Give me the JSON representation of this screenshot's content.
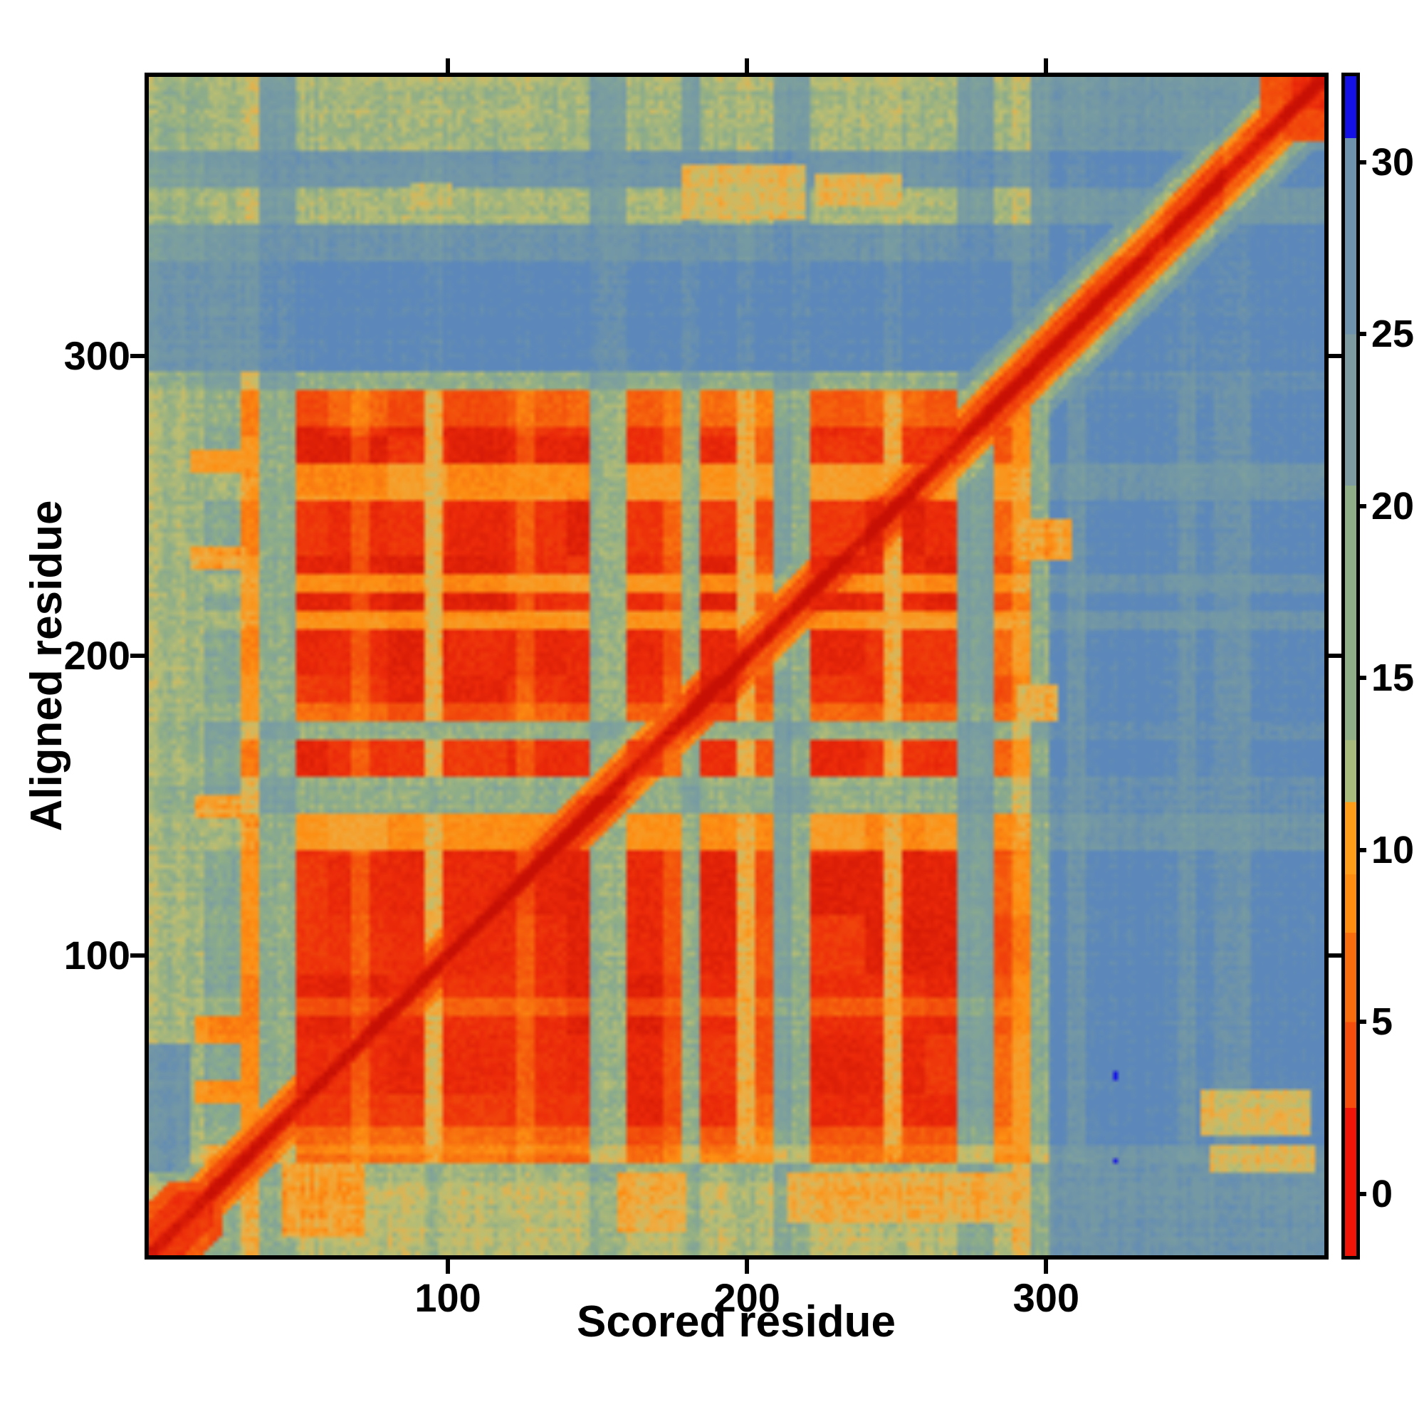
{
  "figure": {
    "background": "#ffffff"
  },
  "chart_data": {
    "type": "heatmap",
    "title": "",
    "xlabel": "Scored residue",
    "ylabel": "Aligned residue",
    "n_residues": 393,
    "x_range": [
      1,
      393
    ],
    "y_range": [
      1,
      393
    ],
    "grid": false,
    "x_ticks": [
      {
        "value": 100,
        "label": "100"
      },
      {
        "value": 200,
        "label": "200"
      },
      {
        "value": 300,
        "label": "300"
      }
    ],
    "y_ticks": [
      {
        "value": 100,
        "label": "100"
      },
      {
        "value": 200,
        "label": "200"
      },
      {
        "value": 300,
        "label": "300"
      }
    ],
    "colorbar": {
      "vmin": -1.8,
      "vmax": 32.5,
      "ticks": [
        {
          "value": 0,
          "label": "0"
        },
        {
          "value": 5,
          "label": "5"
        },
        {
          "value": 10,
          "label": "10"
        },
        {
          "value": 15,
          "label": "15"
        },
        {
          "value": 20,
          "label": "20"
        },
        {
          "value": 25,
          "label": "25"
        },
        {
          "value": 30,
          "label": "30"
        }
      ],
      "stops": [
        [
          -1.8,
          2.5,
          "#f01408"
        ],
        [
          2.5,
          5.0,
          "#f54d0b"
        ],
        [
          5.0,
          7.6,
          "#f96c0d"
        ],
        [
          7.6,
          9.3,
          "#fd8c10"
        ],
        [
          9.3,
          11.4,
          "#ff9d18"
        ],
        [
          11.4,
          13.2,
          "#a8ba7c"
        ],
        [
          13.2,
          20.6,
          "#8fae87"
        ],
        [
          20.6,
          25.0,
          "#7d9aa0"
        ],
        [
          25.0,
          30.7,
          "#6e91ac"
        ],
        [
          30.7,
          32.5,
          "#1411e6"
        ]
      ]
    },
    "palette": [
      "#c81004",
      "#ec2a0a",
      "#f4560c",
      "#fd8f13",
      "#eeae44",
      "#bcbf72",
      "#8fae87",
      "#7da09e",
      "#7095a8",
      "#5b87bb",
      "#1411e6"
    ],
    "matrix": {
      "bins": 64,
      "col_classes": "kkkddoggRRRrRRRyRRRRrRRRggRRrgRRyrGgRRRRyRRRGGrogbBbbbbbBbBBbbbb",
      "row_classes": "kkkkdorRRRRRRrRRRRRRRRyyggRRgrRRRRyRyRRRRyyRRrrgbbbbbbBBttBBtttt",
      "combine": {
        "k": {
          "k": 5.5,
          "d": 6,
          "o": 4,
          "g": 6,
          "G": 6.5,
          "R": 5,
          "r": 5,
          "y": 5.5,
          "b": 8,
          "B": 8
        },
        "d": {
          "k": 6,
          "d": 6,
          "o": 4,
          "g": 6.5,
          "G": 7,
          "R": 5.5,
          "r": 5.5,
          "y": 6,
          "b": 8,
          "B": 8
        },
        "o": {
          "k": 5,
          "d": 4,
          "o": 3,
          "g": 5,
          "G": 5,
          "R": 2.5,
          "r": 3,
          "y": 3.5,
          "b": 8,
          "B": 7.5
        },
        "r": {
          "k": 5.5,
          "d": 6,
          "o": 3,
          "g": 6,
          "G": 6.5,
          "R": 2,
          "r": 2.5,
          "y": 4,
          "b": 9,
          "B": 8
        },
        "R": {
          "k": 5.5,
          "d": 6.5,
          "o": 3,
          "g": 6,
          "G": 7,
          "R": 1,
          "r": 2,
          "y": 4,
          "b": 9,
          "B": 8
        },
        "y": {
          "k": 5.5,
          "d": 5.5,
          "o": 3.5,
          "g": 6,
          "G": 7,
          "R": 3.2,
          "r": 3.2,
          "y": 4,
          "b": 8,
          "B": 7.5
        },
        "g": {
          "k": 6,
          "d": 7,
          "o": 4.5,
          "g": 7,
          "G": 7.5,
          "R": 6,
          "r": 6,
          "y": 6,
          "b": 8.5,
          "B": 8
        },
        "b": {
          "k": 8,
          "d": 8,
          "o": 8,
          "g": 8.5,
          "G": 9,
          "R": 9,
          "r": 9,
          "y": 8.5,
          "b": 9,
          "B": 8.5
        },
        "B": {
          "k": 7,
          "d": 7.5,
          "o": 7.5,
          "g": 8,
          "G": 8.5,
          "R": 8,
          "r": 8,
          "y": 7.5,
          "b": 9,
          "B": 8.5
        },
        "t": {
          "k": 5.8,
          "d": 5.5,
          "o": 5,
          "g": 7.3,
          "G": 7.3,
          "R": 5.5,
          "r": 5.5,
          "y": 5.2,
          "b": 7.8,
          "B": 7.5
        }
      },
      "overrides": [
        [
          14,
          33,
          261,
          269,
          3
        ],
        [
          14,
          33,
          228,
          236,
          3.5
        ],
        [
          16,
          31,
          146,
          154,
          3.5
        ],
        [
          15,
          30,
          71,
          80,
          3
        ],
        [
          16,
          30,
          51,
          59,
          3
        ],
        [
          0,
          14,
          28,
          70,
          8
        ],
        [
          44,
          72,
          6,
          30,
          3.5
        ],
        [
          156,
          180,
          8,
          28,
          4
        ],
        [
          214,
          288,
          10,
          28,
          4
        ],
        [
          352,
          388,
          40,
          56,
          4.5
        ],
        [
          355,
          390,
          28,
          37,
          4.5
        ],
        [
          178,
          220,
          346,
          364,
          4.5
        ],
        [
          222,
          252,
          350,
          361,
          4.5
        ],
        [
          88,
          102,
          348,
          358,
          5
        ],
        [
          290,
          308,
          232,
          246,
          3.5
        ],
        [
          290,
          304,
          178,
          190,
          4
        ],
        [
          322,
          324,
          59,
          61,
          10
        ],
        [
          322,
          324,
          31,
          33,
          10
        ]
      ],
      "diag_steps": [
        [
          2.2,
          0
        ],
        [
          4,
          0.7
        ],
        [
          8,
          1.8
        ],
        [
          12,
          2.8
        ],
        [
          16,
          6
        ],
        [
          20,
          7.5
        ]
      ],
      "diag_blobs": [
        [
          371,
          394,
          24,
          1.8
        ],
        [
          383,
          394,
          40,
          1.2
        ],
        [
          -1,
          25,
          17,
          1.8
        ],
        [
          -1,
          22,
          11,
          1
        ]
      ]
    }
  }
}
